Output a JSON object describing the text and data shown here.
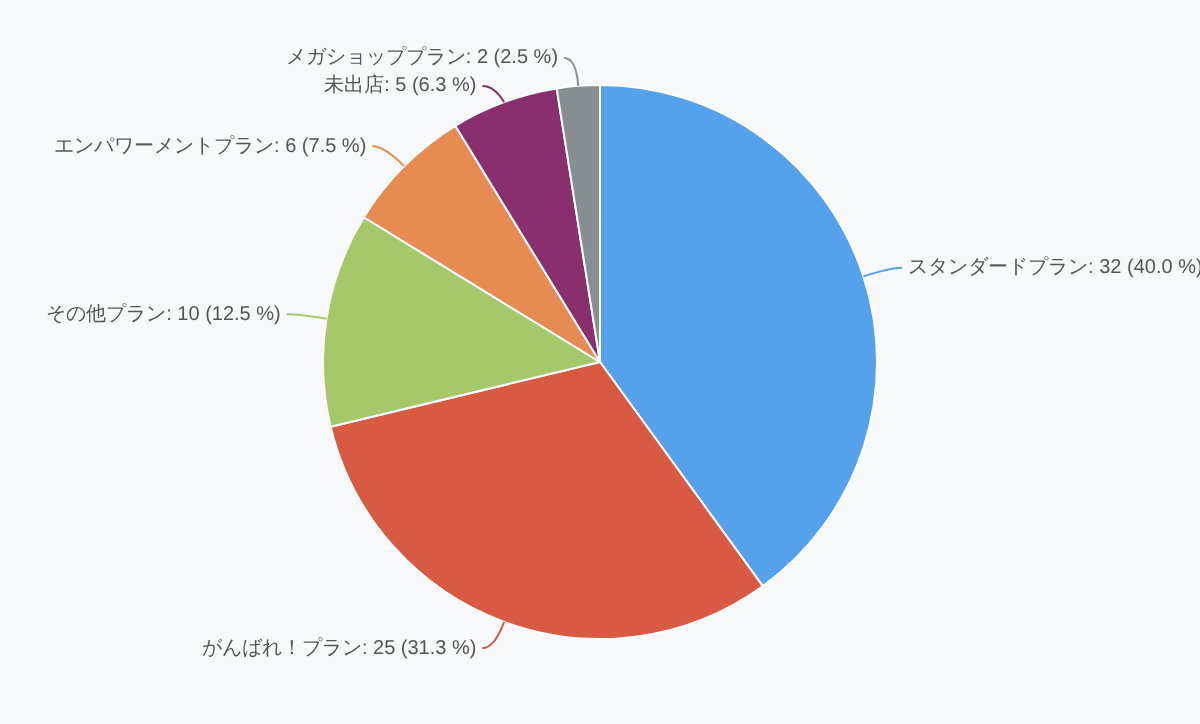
{
  "chart_data": {
    "type": "pie",
    "categories": [
      "スタンダードプラン",
      "がんばれ！プラン",
      "その他プラン",
      "エンパワーメントプラン",
      "未出店",
      "メガショッププラン"
    ],
    "values": [
      32,
      25,
      10,
      6,
      5,
      2
    ],
    "colors": [
      "#55a1ec",
      "#d95a43",
      "#a5c96a",
      "#e68c52",
      "#8a2f6e",
      "#878e92"
    ],
    "value_labels": [
      "32 (40.0 %)",
      "25 (31.3 %)",
      "10 (12.5 %)",
      "6 (7.5 %)",
      "5 (6.3 %)",
      "2 (2.5 %)"
    ],
    "legend": false
  }
}
